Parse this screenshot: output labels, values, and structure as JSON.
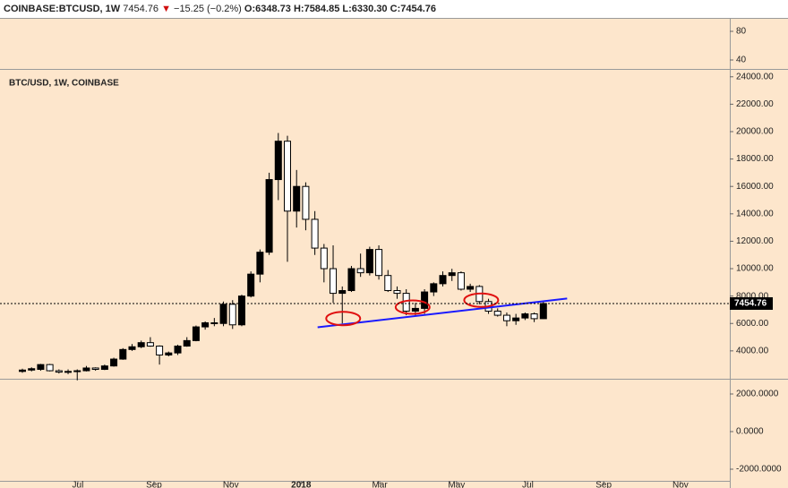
{
  "chart_data": {
    "type": "candlestick",
    "header": {
      "symbol": "COINBASE:BTCUSD, 1W",
      "last": "7454.76",
      "arrow": "▼",
      "change": "−15.25 (−0.2%)",
      "open": "O:6348.73",
      "high": "H:7584.85",
      "low": "L:6330.30",
      "close": "C:7454.76"
    },
    "pane_label": "BTC/USD, 1W, COINBASE",
    "categories": [
      null,
      null,
      null,
      null,
      null,
      null,
      null,
      null,
      null,
      null,
      null,
      null,
      null,
      null,
      null,
      null,
      null,
      null,
      null,
      null,
      null,
      null,
      null,
      null,
      null,
      null,
      null,
      null,
      null,
      null,
      null,
      null,
      null,
      null,
      null,
      null,
      null,
      null,
      null,
      null,
      null,
      null,
      null,
      null,
      null,
      null,
      null,
      null,
      null,
      null,
      null,
      null,
      null,
      null,
      null,
      null,
      null,
      null
    ],
    "open": [
      2500,
      2600,
      2650,
      3000,
      2550,
      2450,
      2500,
      2550,
      2750,
      2650,
      2900,
      3400,
      4100,
      4300,
      4600,
      4350,
      3700,
      3850,
      4350,
      4750,
      5750,
      6050,
      6000,
      7400,
      5900,
      8000,
      9600,
      11200,
      16500,
      19300,
      14200,
      16000,
      13600,
      11500,
      10000,
      8200,
      8400,
      10000,
      9700,
      11400,
      9500,
      8400,
      8200,
      6900,
      7100,
      8300,
      8900,
      9500,
      9700,
      8500,
      8700,
      7600,
      6900,
      6600,
      6200,
      6400,
      6700,
      6348.73
    ],
    "high": [
      2700,
      2800,
      3050,
      3050,
      2650,
      2650,
      2650,
      2900,
      2800,
      3000,
      3500,
      4200,
      4500,
      4750,
      5000,
      4400,
      3950,
      4450,
      5000,
      5850,
      6150,
      6400,
      7600,
      7700,
      8100,
      9800,
      11400,
      17000,
      19900,
      19700,
      17200,
      16300,
      14200,
      11800,
      11700,
      8700,
      10200,
      11100,
      11600,
      11700,
      9900,
      8700,
      8500,
      7500,
      8500,
      9000,
      9800,
      9990,
      9800,
      8900,
      8800,
      7800,
      7100,
      6800,
      6700,
      6800,
      6800,
      7584.85
    ],
    "low": [
      2400,
      2500,
      2550,
      2500,
      2350,
      2300,
      1850,
      2500,
      2550,
      2600,
      2850,
      3350,
      4000,
      4200,
      4300,
      3000,
      3600,
      3700,
      4300,
      4700,
      5550,
      5800,
      5800,
      5600,
      5800,
      7900,
      9000,
      11000,
      15000,
      10500,
      13000,
      12800,
      11000,
      9000,
      7500,
      6000,
      8300,
      9400,
      9500,
      9200,
      8300,
      7800,
      6600,
      6600,
      6700,
      8000,
      8700,
      9100,
      8400,
      8300,
      7400,
      6700,
      6500,
      5800,
      5900,
      6250,
      6100,
      6330.3
    ],
    "close": [
      2600,
      2700,
      3000,
      2550,
      2450,
      2500,
      2550,
      2750,
      2650,
      2900,
      3400,
      4100,
      4300,
      4600,
      4350,
      3700,
      3850,
      4350,
      4750,
      5750,
      6050,
      6000,
      7400,
      5900,
      8000,
      9600,
      11200,
      16500,
      19300,
      14200,
      16000,
      13600,
      11500,
      10000,
      8200,
      8400,
      10000,
      9700,
      11400,
      9500,
      8400,
      8200,
      6900,
      7100,
      8300,
      8900,
      9500,
      9700,
      8500,
      8700,
      7600,
      6900,
      6600,
      6200,
      6400,
      6700,
      6348.73,
      7454.76
    ],
    "up_color": "#000000",
    "down_color": "#ffffff",
    "xlim": [
      -2.45,
      77.4
    ],
    "xticks": [
      {
        "value": 6.07,
        "label": "Jul"
      },
      {
        "value": 14.4,
        "label": "Sep"
      },
      {
        "value": 22.8,
        "label": "Nov"
      },
      {
        "value": 30.5,
        "label": "2018"
      },
      {
        "value": 39.1,
        "label": "Mar"
      },
      {
        "value": 47.5,
        "label": "May"
      },
      {
        "value": 55.3,
        "label": "Jul"
      },
      {
        "value": 63.6,
        "label": "Sep"
      },
      {
        "value": 72.0,
        "label": "Nov"
      }
    ],
    "ylim": [
      1965,
      24573
    ],
    "yticks": [
      {
        "value": 4000,
        "label": "4000.00"
      },
      {
        "value": 6000,
        "label": "6000.00"
      },
      {
        "value": 8000,
        "label": "8000.00"
      },
      {
        "value": 10000,
        "label": "10000.00"
      },
      {
        "value": 12000,
        "label": "12000.00"
      },
      {
        "value": 14000,
        "label": "14000.00"
      },
      {
        "value": 16000,
        "label": "16000.00"
      },
      {
        "value": 18000,
        "label": "18000.00"
      },
      {
        "value": 20000,
        "label": "20000.00"
      },
      {
        "value": 22000,
        "label": "22000.00"
      },
      {
        "value": 24000,
        "label": "24000.00"
      }
    ],
    "top_pane": {
      "ylim": [
        27.5,
        98.75
      ],
      "yticks": [
        40,
        80
      ]
    },
    "bottom_pane": {
      "ylim": [
        -2619,
        2810
      ],
      "yticks": [
        {
          "value": -2000,
          "label": "-2000.0000"
        },
        {
          "value": 0,
          "label": "0.0000"
        },
        {
          "value": 2000,
          "label": "2000.0000"
        }
      ]
    },
    "trendline": {
      "color": "#1a1aff",
      "x": [
        32.3,
        59.6
      ],
      "y": [
        5720,
        7820
      ]
    },
    "highlights": {
      "color": "#e01010",
      "x": [
        35.1,
        42.7,
        50.2
      ],
      "y": [
        6360,
        7190,
        7700
      ]
    }
  }
}
